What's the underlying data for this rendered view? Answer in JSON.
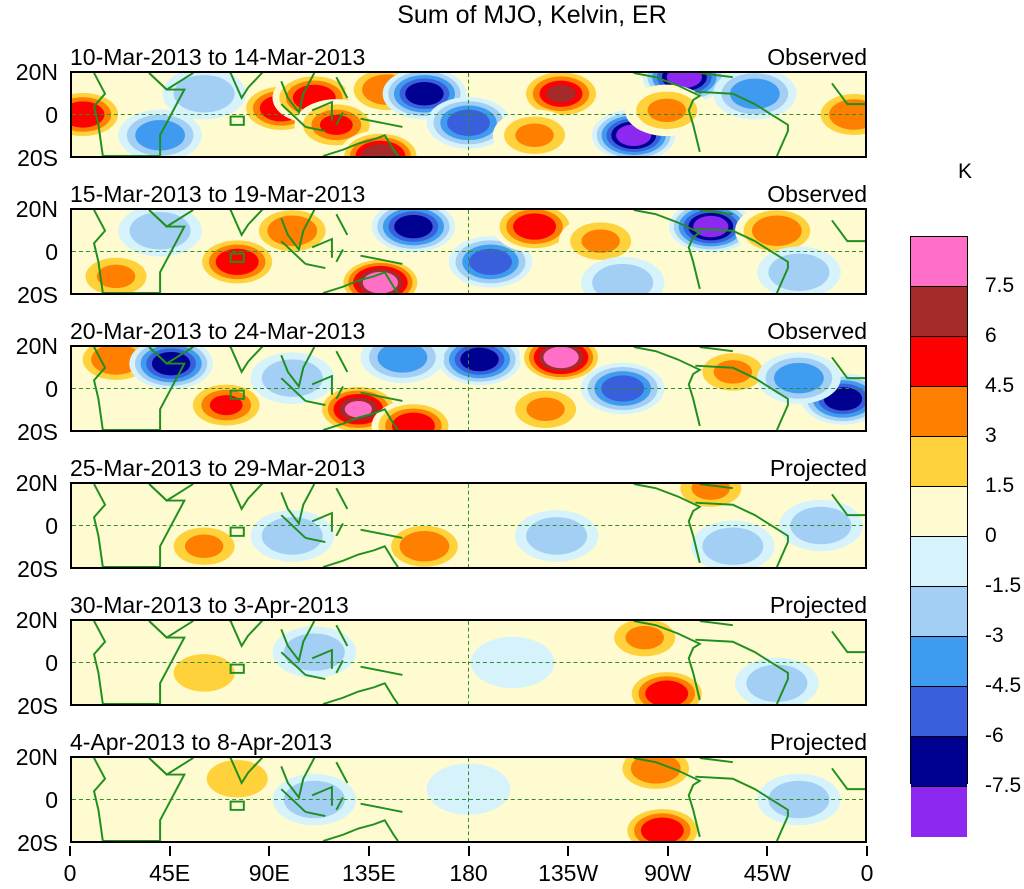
{
  "title": "Sum of MJO, Kelvin, ER",
  "panels": [
    {
      "date": "10-Mar-2013 to 14-Mar-2013",
      "kind": "Observed"
    },
    {
      "date": "15-Mar-2013 to 19-Mar-2013",
      "kind": "Observed"
    },
    {
      "date": "20-Mar-2013 to 24-Mar-2013",
      "kind": "Observed"
    },
    {
      "date": "25-Mar-2013 to 29-Mar-2013",
      "kind": "Projected"
    },
    {
      "date": "30-Mar-2013 to 3-Apr-2013",
      "kind": "Projected"
    },
    {
      "date": "4-Apr-2013 to 8-Apr-2013",
      "kind": "Projected"
    }
  ],
  "y_labels": [
    "20N",
    "0",
    "20S"
  ],
  "x_labels": [
    "0",
    "45E",
    "90E",
    "135E",
    "180",
    "135W",
    "90W",
    "45W",
    "0"
  ],
  "colorbar": {
    "unit": "K",
    "labels": [
      "7.5",
      "6",
      "4.5",
      "3",
      "1.5",
      "0",
      "-1.5",
      "-3",
      "-4.5",
      "-6",
      "-7.5"
    ],
    "colors": [
      "#ff6ec7",
      "#a52a2a",
      "#ff0000",
      "#ff7f00",
      "#ffd23c",
      "#fffbd0",
      "#d6f3fb",
      "#a3cff5",
      "#3f9bf0",
      "#3a5fdc",
      "#000091",
      "#8c28f0"
    ]
  },
  "map": {
    "coast_color": "#1f8f1f",
    "grid_color": "#2f8f2f"
  },
  "chart_data": {
    "type": "heatmap",
    "title": "Sum of MJO, Kelvin, ER",
    "xlabel": "",
    "ylabel": "",
    "x_ticks": [
      "0",
      "45E",
      "90E",
      "135E",
      "180",
      "135W",
      "90W",
      "45W",
      "0"
    ],
    "y_ticks": [
      "20N",
      "0",
      "20S"
    ],
    "xlim": [
      0,
      360
    ],
    "ylim": [
      -20,
      20
    ],
    "levels": [
      -7.5,
      -6,
      -4.5,
      -3,
      -1.5,
      0,
      1.5,
      3,
      4.5,
      6,
      7.5
    ],
    "unit": "K",
    "panels": [
      {
        "date": "10-Mar-2013 to 14-Mar-2013",
        "kind": "Observed",
        "blobs": [
          {
            "lon": 5,
            "lat": 0,
            "v": 5
          },
          {
            "lon": 95,
            "lat": 3,
            "v": 5
          },
          {
            "lon": 110,
            "lat": 8,
            "v": 5.5
          },
          {
            "lon": 120,
            "lat": -5,
            "v": 4.5
          },
          {
            "lon": 143,
            "lat": 12,
            "v": 4
          },
          {
            "lon": 140,
            "lat": -20,
            "v": 7
          },
          {
            "lon": 160,
            "lat": 10,
            "v": -7
          },
          {
            "lon": 180,
            "lat": -4,
            "v": -6
          },
          {
            "lon": 222,
            "lat": 10,
            "v": 6
          },
          {
            "lon": 210,
            "lat": -10,
            "v": 3
          },
          {
            "lon": 255,
            "lat": -10,
            "v": -9
          },
          {
            "lon": 278,
            "lat": 18,
            "v": -8
          },
          {
            "lon": 310,
            "lat": 10,
            "v": -4
          },
          {
            "lon": 40,
            "lat": -10,
            "v": -4
          },
          {
            "lon": 355,
            "lat": 0,
            "v": 4
          },
          {
            "lon": 60,
            "lat": 10,
            "v": -3
          },
          {
            "lon": 270,
            "lat": 2,
            "v": 3
          }
        ]
      },
      {
        "date": "15-Mar-2013 to 19-Mar-2013",
        "kind": "Observed",
        "blobs": [
          {
            "lon": 100,
            "lat": 10,
            "v": 4
          },
          {
            "lon": 75,
            "lat": -5,
            "v": 5
          },
          {
            "lon": 140,
            "lat": -15,
            "v": 8
          },
          {
            "lon": 155,
            "lat": 12,
            "v": -7
          },
          {
            "lon": 190,
            "lat": -5,
            "v": -6
          },
          {
            "lon": 210,
            "lat": 12,
            "v": 5
          },
          {
            "lon": 240,
            "lat": 5,
            "v": 3
          },
          {
            "lon": 290,
            "lat": 12,
            "v": -8
          },
          {
            "lon": 320,
            "lat": 10,
            "v": 4
          },
          {
            "lon": 40,
            "lat": 10,
            "v": -3
          },
          {
            "lon": 250,
            "lat": -15,
            "v": -3
          },
          {
            "lon": 20,
            "lat": -12,
            "v": 3
          },
          {
            "lon": 330,
            "lat": -10,
            "v": -3
          }
        ]
      },
      {
        "date": "20-Mar-2013 to 24-Mar-2013",
        "kind": "Observed",
        "blobs": [
          {
            "lon": 20,
            "lat": 14,
            "v": 4
          },
          {
            "lon": 45,
            "lat": 12,
            "v": -7
          },
          {
            "lon": 70,
            "lat": -8,
            "v": 4.5
          },
          {
            "lon": 130,
            "lat": -10,
            "v": 7.5
          },
          {
            "lon": 155,
            "lat": -18,
            "v": 5
          },
          {
            "lon": 185,
            "lat": 14,
            "v": -7
          },
          {
            "lon": 222,
            "lat": 15,
            "v": 8
          },
          {
            "lon": 250,
            "lat": 0,
            "v": -5
          },
          {
            "lon": 300,
            "lat": 8,
            "v": 3
          },
          {
            "lon": 350,
            "lat": -5,
            "v": -7
          },
          {
            "lon": 150,
            "lat": 15,
            "v": -4
          },
          {
            "lon": 100,
            "lat": 5,
            "v": -3
          },
          {
            "lon": 215,
            "lat": -10,
            "v": 3
          },
          {
            "lon": 330,
            "lat": 5,
            "v": -4
          }
        ]
      },
      {
        "date": "25-Mar-2013 to 29-Mar-2013",
        "kind": "Projected",
        "blobs": [
          {
            "lon": 160,
            "lat": -10,
            "v": 4
          },
          {
            "lon": 60,
            "lat": -10,
            "v": 3
          },
          {
            "lon": 290,
            "lat": 18,
            "v": 3
          },
          {
            "lon": 340,
            "lat": 0,
            "v": -3
          },
          {
            "lon": 100,
            "lat": -5,
            "v": -2
          },
          {
            "lon": 220,
            "lat": -5,
            "v": -2
          },
          {
            "lon": 300,
            "lat": -10,
            "v": -2
          }
        ]
      },
      {
        "date": "30-Mar-2013 to 3-Apr-2013",
        "kind": "Projected",
        "blobs": [
          {
            "lon": 260,
            "lat": 12,
            "v": 3
          },
          {
            "lon": 270,
            "lat": -15,
            "v": 5
          },
          {
            "lon": 60,
            "lat": -5,
            "v": 2
          },
          {
            "lon": 110,
            "lat": 5,
            "v": -2
          },
          {
            "lon": 200,
            "lat": 0,
            "v": -1.5
          },
          {
            "lon": 320,
            "lat": -10,
            "v": -2
          }
        ]
      },
      {
        "date": "4-Apr-2013 to 8-Apr-2013",
        "kind": "Projected",
        "blobs": [
          {
            "lon": 265,
            "lat": 15,
            "v": 3.5
          },
          {
            "lon": 268,
            "lat": -15,
            "v": 5
          },
          {
            "lon": 75,
            "lat": 10,
            "v": 2.5
          },
          {
            "lon": 180,
            "lat": 5,
            "v": -1.5
          },
          {
            "lon": 110,
            "lat": 0,
            "v": -2
          },
          {
            "lon": 330,
            "lat": 0,
            "v": -2
          }
        ]
      }
    ]
  }
}
